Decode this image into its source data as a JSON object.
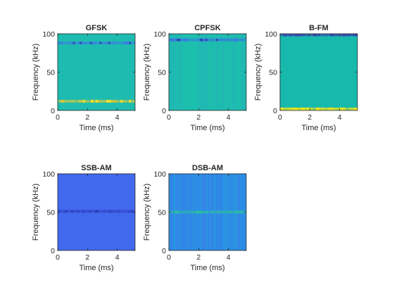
{
  "figure": {
    "background": "#ffffff"
  },
  "chart_data": [
    {
      "type": "heatmap",
      "title": "GFSK",
      "xlabel": "Time (ms)",
      "ylabel": "Frequency (kHz)",
      "xlim": [
        0,
        5.2
      ],
      "ylim": [
        0,
        100
      ],
      "xticks": [
        0,
        2,
        4
      ],
      "yticks": [
        0,
        50,
        100
      ],
      "colormap": "parula",
      "background_color": "#1ebcb0",
      "bands": [
        {
          "freq_khz": 88,
          "level": "low",
          "color": "#3a7ee0"
        },
        {
          "freq_khz": 12,
          "level": "high",
          "color": "#d7c83a"
        }
      ]
    },
    {
      "type": "heatmap",
      "title": "CPFSK",
      "xlabel": "Time (ms)",
      "ylabel": "Frequency (kHz)",
      "xlim": [
        0,
        5.2
      ],
      "ylim": [
        0,
        100
      ],
      "xticks": [
        0,
        2,
        4
      ],
      "yticks": [
        0,
        50,
        100
      ],
      "colormap": "parula",
      "background_color": "#1ebcb0",
      "bands": [
        {
          "freq_khz": 92,
          "level": "low",
          "color": "#3a6fe6"
        }
      ]
    },
    {
      "type": "heatmap",
      "title": "B-FM",
      "xlabel": "Time (ms)",
      "ylabel": "Frequency (kHz)",
      "xlim": [
        0,
        5.2
      ],
      "ylim": [
        0,
        100
      ],
      "xticks": [
        0,
        2,
        4
      ],
      "yticks": [
        0,
        50,
        100
      ],
      "colormap": "parula",
      "background_color": "#17b9ad",
      "bands": [
        {
          "freq_khz": 99,
          "level": "low",
          "color": "#3f3db4"
        },
        {
          "freq_khz": 1.5,
          "level": "high",
          "color": "#f4e61b"
        }
      ]
    },
    {
      "type": "heatmap",
      "title": "SSB-AM",
      "xlabel": "Time (ms)",
      "ylabel": "Frequency (kHz)",
      "xlim": [
        0,
        5.2
      ],
      "ylim": [
        0,
        100
      ],
      "xticks": [
        0,
        2,
        4
      ],
      "yticks": [
        0,
        50,
        100
      ],
      "colormap": "parula",
      "background_color": "#4169ee",
      "bands": [
        {
          "freq_khz": 51,
          "level": "low",
          "color": "#3346c8"
        }
      ]
    },
    {
      "type": "heatmap",
      "title": "DSB-AM",
      "xlabel": "Time (ms)",
      "ylabel": "Frequency (kHz)",
      "xlim": [
        0,
        5.2
      ],
      "ylim": [
        0,
        100
      ],
      "xticks": [
        0,
        2,
        4
      ],
      "yticks": [
        0,
        50,
        100
      ],
      "colormap": "parula",
      "background_color": "#2e8fe6",
      "bands": [
        {
          "freq_khz": 50,
          "level": "mid",
          "color": "#2bc0a0"
        }
      ]
    }
  ]
}
